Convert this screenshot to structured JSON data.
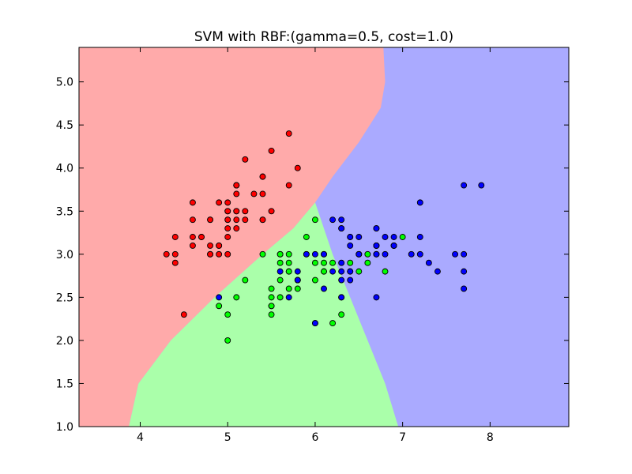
{
  "chart_data": {
    "type": "scatter",
    "title": "SVM with RBF:(gamma=0.5, cost=1.0)",
    "xlabel": "",
    "ylabel": "",
    "xlim": [
      3.3,
      8.9
    ],
    "ylim": [
      1.0,
      5.4
    ],
    "xticks": [
      4,
      5,
      6,
      7,
      8
    ],
    "yticks": [
      1.0,
      1.5,
      2.0,
      2.5,
      3.0,
      3.5,
      4.0,
      4.5,
      5.0
    ],
    "grid": false,
    "legend": "none",
    "colors": {
      "region_red": "#ffaaaa",
      "region_green": "#aaffaa",
      "region_blue": "#aaaaff",
      "point_red": "#ff0000",
      "point_green": "#00ff00",
      "point_blue": "#0000ff",
      "point_edge": "#000000"
    },
    "regions": [
      {
        "class": "red",
        "boundary": [
          [
            3.87,
            1.0
          ],
          [
            3.98,
            1.5
          ],
          [
            4.35,
            2.0
          ],
          [
            4.85,
            2.5
          ],
          [
            5.4,
            3.0
          ],
          [
            5.75,
            3.3
          ],
          [
            6.0,
            3.6
          ],
          [
            6.2,
            3.9
          ],
          [
            6.5,
            4.3
          ],
          [
            6.75,
            4.7
          ],
          [
            6.8,
            5.0
          ],
          [
            6.78,
            5.4
          ]
        ]
      },
      {
        "class": "green",
        "boundary": [
          [
            6.0,
            3.6
          ],
          [
            6.2,
            3.0
          ],
          [
            6.4,
            2.5
          ],
          [
            6.6,
            2.0
          ],
          [
            6.8,
            1.5
          ],
          [
            6.95,
            1.0
          ]
        ]
      },
      {
        "class": "blue",
        "boundary": []
      }
    ],
    "series": [
      {
        "class": "red",
        "points": [
          [
            5.1,
            3.5
          ],
          [
            4.9,
            3.0
          ],
          [
            4.7,
            3.2
          ],
          [
            4.6,
            3.1
          ],
          [
            5.0,
            3.6
          ],
          [
            5.4,
            3.9
          ],
          [
            4.6,
            3.4
          ],
          [
            5.0,
            3.4
          ],
          [
            4.4,
            2.9
          ],
          [
            4.9,
            3.1
          ],
          [
            5.4,
            3.7
          ],
          [
            4.8,
            3.4
          ],
          [
            4.8,
            3.0
          ],
          [
            4.3,
            3.0
          ],
          [
            5.8,
            4.0
          ],
          [
            5.7,
            4.4
          ],
          [
            5.4,
            3.9
          ],
          [
            5.1,
            3.5
          ],
          [
            5.7,
            3.8
          ],
          [
            5.1,
            3.8
          ],
          [
            5.4,
            3.4
          ],
          [
            5.1,
            3.7
          ],
          [
            4.6,
            3.6
          ],
          [
            5.1,
            3.3
          ],
          [
            4.8,
            3.4
          ],
          [
            5.0,
            3.0
          ],
          [
            5.0,
            3.4
          ],
          [
            5.2,
            3.5
          ],
          [
            5.2,
            3.4
          ],
          [
            4.7,
            3.2
          ],
          [
            4.8,
            3.1
          ],
          [
            5.4,
            3.4
          ],
          [
            5.2,
            4.1
          ],
          [
            5.5,
            4.2
          ],
          [
            4.9,
            3.1
          ],
          [
            5.0,
            3.2
          ],
          [
            5.5,
            3.5
          ],
          [
            4.9,
            3.6
          ],
          [
            4.4,
            3.0
          ],
          [
            5.1,
            3.4
          ],
          [
            5.0,
            3.5
          ],
          [
            4.5,
            2.3
          ],
          [
            4.4,
            3.2
          ],
          [
            5.0,
            3.5
          ],
          [
            5.1,
            3.8
          ],
          [
            4.8,
            3.0
          ],
          [
            5.1,
            3.8
          ],
          [
            4.6,
            3.2
          ],
          [
            5.3,
            3.7
          ],
          [
            5.0,
            3.3
          ]
        ]
      },
      {
        "class": "green",
        "points": [
          [
            7.0,
            3.2
          ],
          [
            6.4,
            3.2
          ],
          [
            6.9,
            3.1
          ],
          [
            5.5,
            2.3
          ],
          [
            6.5,
            2.8
          ],
          [
            5.7,
            2.8
          ],
          [
            6.3,
            3.3
          ],
          [
            4.9,
            2.4
          ],
          [
            6.6,
            2.9
          ],
          [
            5.2,
            2.7
          ],
          [
            5.0,
            2.0
          ],
          [
            5.9,
            3.0
          ],
          [
            6.0,
            2.2
          ],
          [
            6.1,
            2.9
          ],
          [
            5.6,
            2.9
          ],
          [
            6.7,
            3.1
          ],
          [
            5.6,
            3.0
          ],
          [
            5.8,
            2.7
          ],
          [
            6.2,
            2.2
          ],
          [
            5.6,
            2.5
          ],
          [
            5.9,
            3.2
          ],
          [
            6.1,
            2.8
          ],
          [
            6.3,
            2.5
          ],
          [
            6.1,
            2.8
          ],
          [
            6.4,
            2.9
          ],
          [
            6.6,
            3.0
          ],
          [
            6.8,
            2.8
          ],
          [
            6.7,
            3.0
          ],
          [
            6.0,
            2.9
          ],
          [
            5.7,
            2.6
          ],
          [
            5.5,
            2.4
          ],
          [
            5.5,
            2.4
          ],
          [
            5.8,
            2.7
          ],
          [
            6.0,
            2.7
          ],
          [
            5.4,
            3.0
          ],
          [
            6.0,
            3.4
          ],
          [
            6.7,
            3.1
          ],
          [
            6.3,
            2.3
          ],
          [
            5.6,
            3.0
          ],
          [
            5.5,
            2.5
          ],
          [
            5.5,
            2.6
          ],
          [
            6.1,
            3.0
          ],
          [
            5.8,
            2.6
          ],
          [
            5.0,
            2.3
          ],
          [
            5.6,
            2.7
          ],
          [
            5.7,
            3.0
          ],
          [
            5.7,
            2.9
          ],
          [
            6.2,
            2.9
          ],
          [
            5.1,
            2.5
          ],
          [
            5.7,
            2.8
          ]
        ]
      },
      {
        "class": "blue",
        "points": [
          [
            6.3,
            3.3
          ],
          [
            5.8,
            2.7
          ],
          [
            7.1,
            3.0
          ],
          [
            6.3,
            2.9
          ],
          [
            6.5,
            3.0
          ],
          [
            7.6,
            3.0
          ],
          [
            4.9,
            2.5
          ],
          [
            7.3,
            2.9
          ],
          [
            6.7,
            2.5
          ],
          [
            7.2,
            3.6
          ],
          [
            6.5,
            3.2
          ],
          [
            6.4,
            2.7
          ],
          [
            6.8,
            3.0
          ],
          [
            5.7,
            2.5
          ],
          [
            5.8,
            2.8
          ],
          [
            6.4,
            3.2
          ],
          [
            6.5,
            3.0
          ],
          [
            7.7,
            3.8
          ],
          [
            7.7,
            2.6
          ],
          [
            6.0,
            2.2
          ],
          [
            6.9,
            3.2
          ],
          [
            5.6,
            2.8
          ],
          [
            7.7,
            2.8
          ],
          [
            6.3,
            2.7
          ],
          [
            6.7,
            3.3
          ],
          [
            7.2,
            3.2
          ],
          [
            6.2,
            2.8
          ],
          [
            6.1,
            3.0
          ],
          [
            6.4,
            2.8
          ],
          [
            7.2,
            3.0
          ],
          [
            7.4,
            2.8
          ],
          [
            7.9,
            3.8
          ],
          [
            6.4,
            2.8
          ],
          [
            6.3,
            2.8
          ],
          [
            6.1,
            2.6
          ],
          [
            7.7,
            3.0
          ],
          [
            6.3,
            3.4
          ],
          [
            6.4,
            3.1
          ],
          [
            6.0,
            3.0
          ],
          [
            6.9,
            3.1
          ],
          [
            6.7,
            3.1
          ],
          [
            6.9,
            3.1
          ],
          [
            5.8,
            2.7
          ],
          [
            6.8,
            3.2
          ],
          [
            6.7,
            3.3
          ],
          [
            6.7,
            3.0
          ],
          [
            6.3,
            2.5
          ],
          [
            6.5,
            3.0
          ],
          [
            6.2,
            3.4
          ],
          [
            5.9,
            3.0
          ]
        ]
      }
    ]
  }
}
